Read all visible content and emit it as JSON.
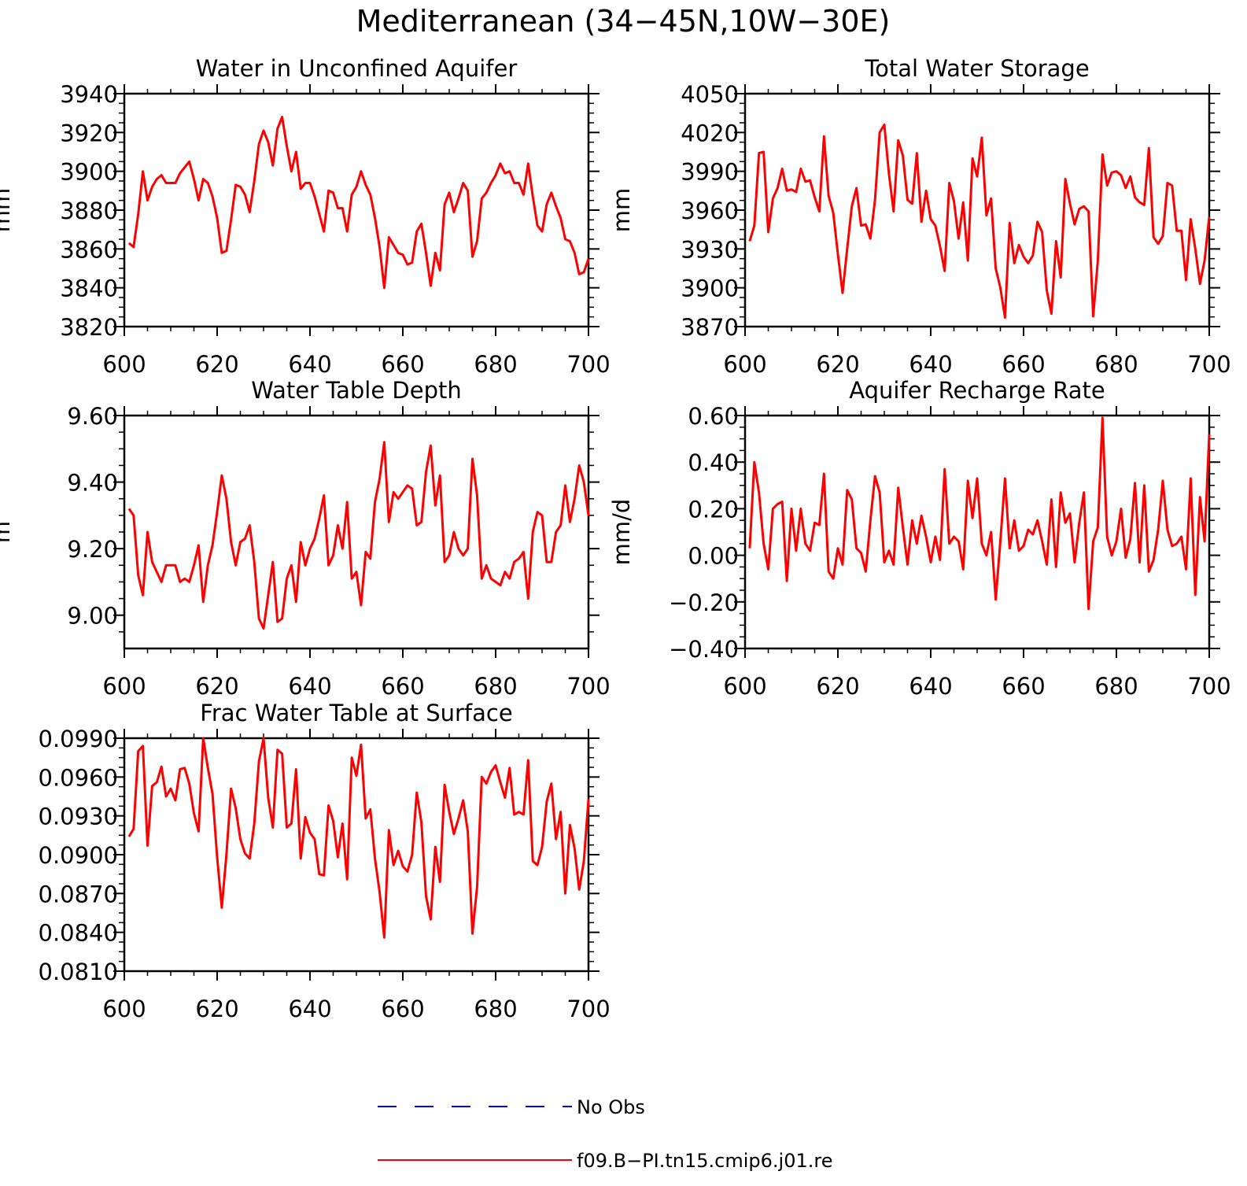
{
  "figure": {
    "title": "Mediterranean (34−45N,10W−30E)"
  },
  "colors": {
    "model": "#ff0000",
    "obs": "#0000ff",
    "axes": "#000000"
  },
  "legend": {
    "placement": "bottom-center",
    "items": [
      {
        "label": "No Obs",
        "color": "#0000ff",
        "style": "dashed"
      },
      {
        "label": "f09.B−PI.tn15.cmip6.j01.re",
        "color": "#ff0000",
        "style": "solid"
      }
    ]
  },
  "chart_data": [
    {
      "type": "line",
      "title": "Water in Unconfined Aquifer",
      "ylabel": "mm",
      "xlabel": "",
      "xlim": [
        600,
        700
      ],
      "ylim": [
        3820,
        3940
      ],
      "xticks": [
        600,
        620,
        640,
        660,
        680,
        700
      ],
      "yticks": [
        3820,
        3840,
        3860,
        3880,
        3900,
        3920,
        3940
      ],
      "ytick_labels": [
        "3820",
        "3840",
        "3860",
        "3880",
        "3900",
        "3920",
        "3940"
      ],
      "x_start": 601,
      "series": [
        {
          "values": [
            3863,
            3861,
            3878,
            3900,
            3885,
            3892,
            3896,
            3898,
            3894,
            3894,
            3894,
            3899,
            3902,
            3905,
            3896,
            3885,
            3896,
            3894,
            3887,
            3876,
            3858,
            3859,
            3875,
            3893,
            3892,
            3888,
            3879,
            3895,
            3914,
            3921,
            3915,
            3903,
            3922,
            3928,
            3913,
            3900,
            3910,
            3891,
            3894,
            3894,
            3887,
            3878,
            3869,
            3890,
            3889,
            3881,
            3881,
            3869,
            3888,
            3892,
            3900,
            3893,
            3888,
            3876,
            3861,
            3840,
            3866,
            3862,
            3858,
            3857,
            3852,
            3853,
            3869,
            3873,
            3858,
            3841,
            3858,
            3849,
            3883,
            3889,
            3879,
            3886,
            3894,
            3890,
            3856,
            3864,
            3886,
            3889,
            3894,
            3898,
            3904,
            3899,
            3900,
            3894,
            3894,
            3888,
            3904,
            3887,
            3872,
            3869,
            3883,
            3889,
            3882,
            3876,
            3865,
            3864,
            3858,
            3847,
            3848,
            3855
          ]
        }
      ]
    },
    {
      "type": "line",
      "title": "Total Water Storage",
      "ylabel": "mm",
      "xlabel": "",
      "xlim": [
        600,
        700
      ],
      "ylim": [
        3870,
        4050
      ],
      "xticks": [
        600,
        620,
        640,
        660,
        680,
        700
      ],
      "yticks": [
        3870,
        3900,
        3930,
        3960,
        3990,
        4020,
        4050
      ],
      "ytick_labels": [
        "3870",
        "3900",
        "3930",
        "3960",
        "3990",
        "4020",
        "4050"
      ],
      "x_start": 601,
      "series": [
        {
          "values": [
            3936,
            3948,
            4004,
            4005,
            3943,
            3969,
            3977,
            3992,
            3975,
            3976,
            3974,
            3992,
            3982,
            3983,
            3970,
            3959,
            4017,
            3971,
            3958,
            3926,
            3896,
            3930,
            3963,
            3977,
            3948,
            3949,
            3938,
            3968,
            4020,
            4026,
            3988,
            3959,
            4014,
            4002,
            3968,
            3965,
            4004,
            3951,
            3975,
            3953,
            3948,
            3932,
            3913,
            3981,
            3967,
            3938,
            3966,
            3921,
            4000,
            3986,
            4016,
            3956,
            3969,
            3915,
            3900,
            3877,
            3950,
            3919,
            3933,
            3924,
            3919,
            3925,
            3951,
            3943,
            3898,
            3880,
            3936,
            3908,
            3984,
            3965,
            3949,
            3961,
            3963,
            3959,
            3878,
            3921,
            4003,
            3979,
            3989,
            3990,
            3987,
            3977,
            3986,
            3970,
            3966,
            3964,
            4008,
            3939,
            3934,
            3940,
            3981,
            3979,
            3944,
            3944,
            3906,
            3953,
            3930,
            3903,
            3921,
            3955
          ]
        }
      ]
    },
    {
      "type": "line",
      "title": "Water Table Depth",
      "ylabel": "m",
      "xlabel": "",
      "xlim": [
        600,
        700
      ],
      "ylim": [
        8.9,
        9.6
      ],
      "xticks": [
        600,
        620,
        640,
        660,
        680,
        700
      ],
      "yticks": [
        9.0,
        9.2,
        9.4,
        9.6
      ],
      "ytick_labels": [
        "9.00",
        "9.20",
        "9.40",
        "9.60"
      ],
      "x_start": 601,
      "series": [
        {
          "values": [
            9.32,
            9.3,
            9.12,
            9.06,
            9.25,
            9.16,
            9.13,
            9.1,
            9.15,
            9.15,
            9.15,
            9.1,
            9.11,
            9.1,
            9.15,
            9.21,
            9.04,
            9.15,
            9.21,
            9.31,
            9.42,
            9.35,
            9.22,
            9.15,
            9.22,
            9.23,
            9.27,
            9.16,
            8.99,
            8.96,
            9.06,
            9.16,
            8.98,
            8.99,
            9.11,
            9.15,
            9.04,
            9.22,
            9.15,
            9.2,
            9.23,
            9.29,
            9.36,
            9.15,
            9.18,
            9.27,
            9.2,
            9.34,
            9.11,
            9.13,
            9.03,
            9.19,
            9.17,
            9.34,
            9.41,
            9.52,
            9.28,
            9.37,
            9.35,
            9.37,
            9.39,
            9.38,
            9.27,
            9.28,
            9.43,
            9.51,
            9.33,
            9.42,
            9.16,
            9.18,
            9.25,
            9.2,
            9.18,
            9.2,
            9.47,
            9.36,
            9.11,
            9.15,
            9.11,
            9.1,
            9.09,
            9.13,
            9.11,
            9.16,
            9.17,
            9.19,
            9.05,
            9.25,
            9.31,
            9.3,
            9.16,
            9.16,
            9.25,
            9.27,
            9.39,
            9.28,
            9.35,
            9.45,
            9.4,
            9.3
          ]
        }
      ]
    },
    {
      "type": "line",
      "title": "Aquifer Recharge Rate",
      "ylabel": "mm/d",
      "xlabel": "",
      "xlim": [
        600,
        700
      ],
      "ylim": [
        -0.4,
        0.6
      ],
      "xticks": [
        600,
        620,
        640,
        660,
        680,
        700
      ],
      "yticks": [
        -0.4,
        -0.2,
        0.0,
        0.2,
        0.4,
        0.6
      ],
      "ytick_labels": [
        "−0.40",
        "−0.20",
        "0.00",
        "0.20",
        "0.40",
        "0.60"
      ],
      "x_start": 601,
      "series": [
        {
          "values": [
            0.03,
            0.4,
            0.27,
            0.05,
            -0.06,
            0.2,
            0.22,
            0.23,
            -0.11,
            0.2,
            0.02,
            0.2,
            0.05,
            0.02,
            0.14,
            0.13,
            0.35,
            -0.07,
            -0.1,
            0.03,
            -0.04,
            0.28,
            0.24,
            0.03,
            0.01,
            -0.07,
            0.15,
            0.34,
            0.27,
            -0.03,
            0.02,
            -0.04,
            0.29,
            0.12,
            -0.04,
            0.15,
            0.05,
            0.17,
            0.08,
            -0.03,
            0.08,
            -0.02,
            0.37,
            0.05,
            0.08,
            0.06,
            -0.06,
            0.32,
            0.16,
            0.33,
            0.05,
            0.0,
            0.1,
            -0.19,
            0.06,
            0.33,
            0.03,
            0.15,
            0.02,
            0.04,
            0.11,
            0.09,
            0.15,
            0.06,
            -0.04,
            0.24,
            -0.05,
            0.27,
            0.14,
            0.18,
            -0.03,
            0.14,
            0.27,
            -0.23,
            0.06,
            0.12,
            0.59,
            0.08,
            0.0,
            0.06,
            0.2,
            -0.01,
            0.07,
            0.31,
            -0.03,
            0.3,
            -0.07,
            -0.02,
            0.11,
            0.32,
            0.11,
            0.04,
            0.05,
            0.08,
            -0.06,
            0.33,
            -0.17,
            0.25,
            0.06,
            0.52
          ]
        }
      ]
    },
    {
      "type": "line",
      "title": "Frac Water Table at Surface",
      "ylabel": "",
      "xlabel": "",
      "xlim": [
        600,
        700
      ],
      "ylim": [
        0.081,
        0.099
      ],
      "xticks": [
        600,
        620,
        640,
        660,
        680,
        700
      ],
      "yticks": [
        0.081,
        0.084,
        0.087,
        0.09,
        0.093,
        0.096,
        0.099
      ],
      "ytick_labels": [
        "0.0810",
        "0.0840",
        "0.0870",
        "0.0900",
        "0.0930",
        "0.0960",
        "0.0990"
      ],
      "x_start": 601,
      "series": [
        {
          "values": [
            0.0914,
            0.092,
            0.098,
            0.0984,
            0.0907,
            0.0953,
            0.0956,
            0.0968,
            0.0945,
            0.0951,
            0.0942,
            0.0966,
            0.0967,
            0.0955,
            0.0932,
            0.0918,
            0.099,
            0.0967,
            0.0947,
            0.0898,
            0.0859,
            0.09,
            0.0951,
            0.0936,
            0.0912,
            0.0901,
            0.0897,
            0.0924,
            0.0972,
            0.099,
            0.0944,
            0.0921,
            0.0981,
            0.0978,
            0.0921,
            0.0924,
            0.0966,
            0.0897,
            0.0929,
            0.0917,
            0.0912,
            0.0885,
            0.0884,
            0.0938,
            0.0926,
            0.0898,
            0.0924,
            0.0881,
            0.0975,
            0.0961,
            0.0985,
            0.0928,
            0.0935,
            0.0897,
            0.0871,
            0.0836,
            0.0919,
            0.0892,
            0.0903,
            0.0891,
            0.0887,
            0.09,
            0.0948,
            0.0925,
            0.0868,
            0.085,
            0.0906,
            0.0879,
            0.0954,
            0.0933,
            0.0916,
            0.0928,
            0.0942,
            0.0918,
            0.0839,
            0.0875,
            0.096,
            0.0955,
            0.0964,
            0.0969,
            0.0956,
            0.0944,
            0.0967,
            0.0931,
            0.0933,
            0.0931,
            0.0973,
            0.0895,
            0.0892,
            0.0906,
            0.0941,
            0.0955,
            0.0912,
            0.0933,
            0.087,
            0.0923,
            0.0905,
            0.0873,
            0.0895,
            0.0943
          ]
        }
      ]
    }
  ]
}
